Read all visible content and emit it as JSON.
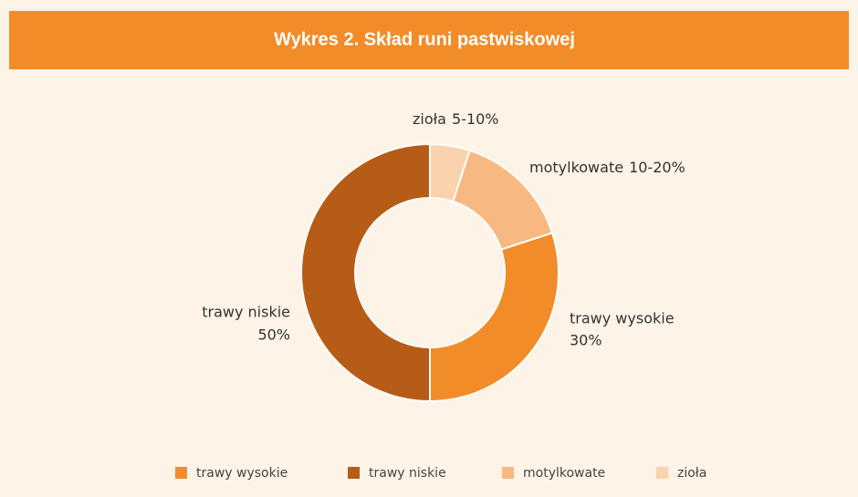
{
  "chart_data": {
    "type": "donut",
    "title": "Wykres 2. Skład runi pastwiskowej",
    "categories": [
      "trawy wysokie",
      "trawy niskie",
      "motylkowate",
      "zioła"
    ],
    "values": [
      30,
      50,
      15,
      5
    ],
    "value_labels": [
      "30%",
      "50%",
      "10-20%",
      "5-10%"
    ],
    "colors": [
      "#f28c28",
      "#b65c17",
      "#f7b981",
      "#fad2ad"
    ],
    "legend": "bottom"
  }
}
